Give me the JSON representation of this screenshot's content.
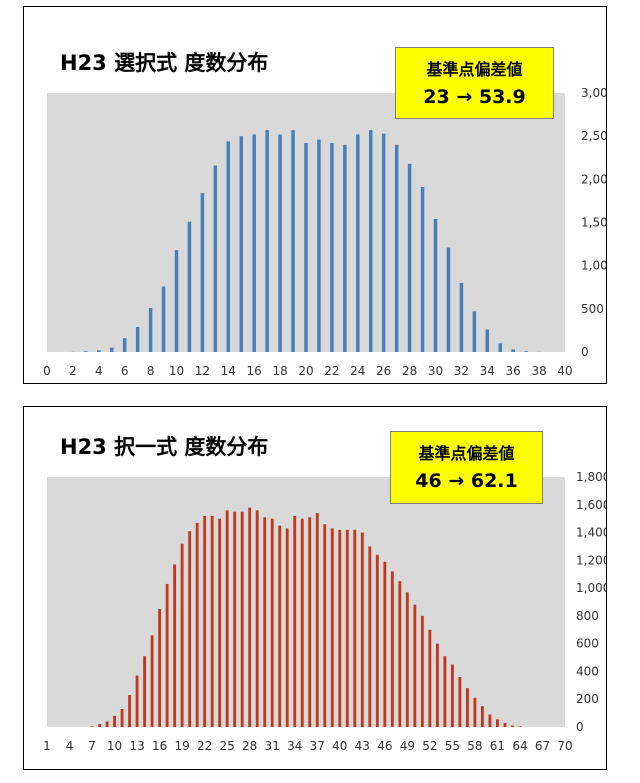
{
  "chart_data": [
    {
      "type": "bar",
      "title": "H23 選択式 度数分布",
      "annotation": {
        "line1": "基準点偏差値",
        "line2": "23 → 53.9"
      },
      "color": "#4a7ebb",
      "x": [
        0,
        1,
        2,
        3,
        4,
        5,
        6,
        7,
        8,
        9,
        10,
        11,
        12,
        13,
        14,
        15,
        16,
        17,
        18,
        19,
        20,
        21,
        22,
        23,
        24,
        25,
        26,
        27,
        28,
        29,
        30,
        31,
        32,
        33,
        34,
        35,
        36,
        37,
        38,
        39,
        40
      ],
      "values": [
        0,
        0,
        2,
        8,
        20,
        50,
        160,
        290,
        510,
        760,
        1180,
        1510,
        1840,
        2160,
        2440,
        2500,
        2520,
        2570,
        2520,
        2570,
        2420,
        2460,
        2420,
        2400,
        2520,
        2570,
        2530,
        2400,
        2180,
        1910,
        1540,
        1210,
        800,
        470,
        260,
        100,
        30,
        10,
        2,
        0,
        0
      ],
      "xticks": [
        "0",
        "2",
        "4",
        "6",
        "8",
        "10",
        "12",
        "14",
        "16",
        "18",
        "20",
        "22",
        "24",
        "26",
        "28",
        "30",
        "32",
        "34",
        "36",
        "38",
        "40"
      ],
      "yticks": [
        "0",
        "500",
        "1,000",
        "1,500",
        "2,000",
        "2,500",
        "3,000"
      ],
      "ylim": [
        0,
        3000
      ],
      "y_axis_side": "right",
      "grid": false,
      "plot_background": "#d9d9d9"
    },
    {
      "type": "bar",
      "title": "H23 択一式 度数分布",
      "annotation": {
        "line1": "基準点偏差値",
        "line2": "46 → 62.1"
      },
      "color": "#c0391e",
      "x": [
        1,
        2,
        3,
        4,
        5,
        6,
        7,
        8,
        9,
        10,
        11,
        12,
        13,
        14,
        15,
        16,
        17,
        18,
        19,
        20,
        21,
        22,
        23,
        24,
        25,
        26,
        27,
        28,
        29,
        30,
        31,
        32,
        33,
        34,
        35,
        36,
        37,
        38,
        39,
        40,
        41,
        42,
        43,
        44,
        45,
        46,
        47,
        48,
        49,
        50,
        51,
        52,
        53,
        54,
        55,
        56,
        57,
        58,
        59,
        60,
        61,
        62,
        63,
        64,
        65,
        66,
        67,
        68,
        69,
        70
      ],
      "values": [
        0,
        0,
        0,
        0,
        0,
        0,
        5,
        20,
        40,
        80,
        130,
        230,
        370,
        510,
        660,
        850,
        1030,
        1170,
        1320,
        1410,
        1470,
        1520,
        1520,
        1500,
        1560,
        1550,
        1550,
        1580,
        1560,
        1510,
        1500,
        1450,
        1430,
        1520,
        1500,
        1510,
        1540,
        1460,
        1430,
        1420,
        1420,
        1420,
        1400,
        1300,
        1240,
        1190,
        1120,
        1050,
        970,
        880,
        800,
        700,
        600,
        510,
        450,
        360,
        280,
        210,
        150,
        90,
        55,
        30,
        10,
        5,
        0,
        0,
        0,
        0,
        0,
        0
      ],
      "xticks": [
        "1",
        "4",
        "7",
        "10",
        "13",
        "16",
        "19",
        "22",
        "25",
        "28",
        "31",
        "34",
        "37",
        "40",
        "43",
        "46",
        "49",
        "52",
        "55",
        "58",
        "61",
        "64",
        "67",
        "70"
      ],
      "yticks": [
        "0",
        "200",
        "400",
        "600",
        "800",
        "1,000",
        "1,200",
        "1,400",
        "1,600",
        "1,800"
      ],
      "ylim": [
        0,
        1800
      ],
      "y_axis_side": "right",
      "grid": false,
      "plot_background": "#d9d9d9"
    }
  ]
}
